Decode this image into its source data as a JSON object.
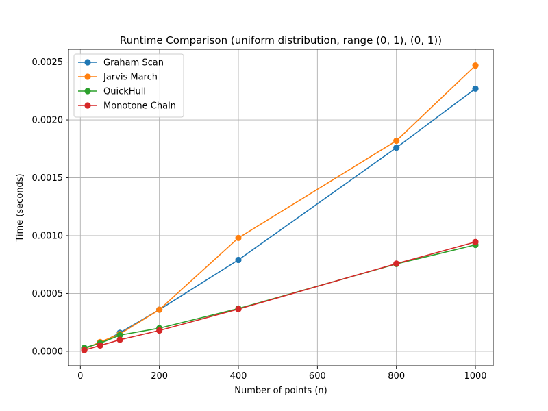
{
  "chart_data": {
    "type": "line",
    "title": "Runtime Comparison (uniform distribution, range (0, 1), (0, 1))",
    "xlabel": "Number of points (n)",
    "ylabel": "Time (seconds)",
    "xlim": [
      -30,
      1045
    ],
    "ylim": [
      -0.000125,
      0.00261
    ],
    "xticks": [
      0,
      200,
      400,
      600,
      800,
      1000
    ],
    "xtick_labels": [
      "0",
      "200",
      "400",
      "600",
      "800",
      "1000"
    ],
    "yticks": [
      0.0,
      0.0005,
      0.001,
      0.0015,
      0.002,
      0.0025
    ],
    "ytick_labels": [
      "0.0000",
      "0.0005",
      "0.0010",
      "0.0015",
      "0.0020",
      "0.0025"
    ],
    "grid": true,
    "legend_position": "top-left",
    "x": [
      10,
      50,
      100,
      200,
      400,
      800,
      1000
    ],
    "series": [
      {
        "name": "Graham Scan",
        "color": "#1f77b4",
        "values": [
          3e-05,
          7e-05,
          0.00016,
          0.00036,
          0.00079,
          0.00176,
          0.00227
        ]
      },
      {
        "name": "Jarvis March",
        "color": "#ff7f0e",
        "values": [
          2e-05,
          8e-05,
          0.00015,
          0.00036,
          0.00098,
          0.00182,
          0.00247
        ]
      },
      {
        "name": "QuickHull",
        "color": "#2ca02c",
        "values": [
          3e-05,
          7e-05,
          0.00014,
          0.0002,
          0.00037,
          0.000755,
          0.00092
        ]
      },
      {
        "name": "Monotone Chain",
        "color": "#d62728",
        "values": [
          1e-05,
          5e-05,
          0.0001,
          0.00018,
          0.000365,
          0.000758,
          0.000945
        ]
      }
    ]
  }
}
